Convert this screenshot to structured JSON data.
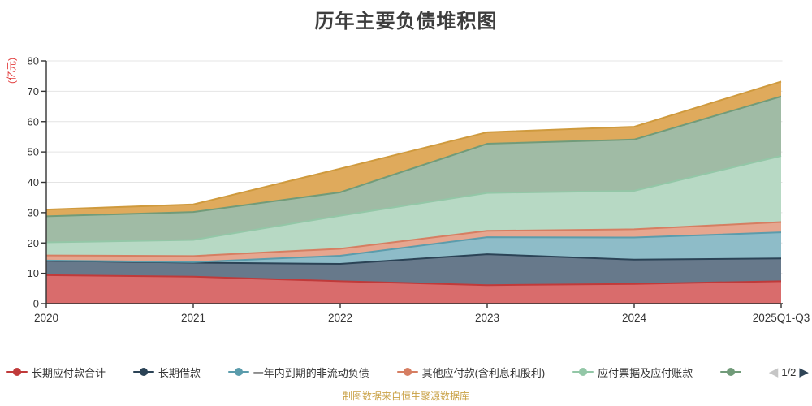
{
  "title": "历年主要负债堆积图",
  "footer": "制图数据来自恒生聚源数据库",
  "legend": {
    "items": [
      {
        "label": "长期应付款合计",
        "color": "#c03a3a"
      },
      {
        "label": "长期借款",
        "color": "#2b4356"
      },
      {
        "label": "一年内到期的非流动负债",
        "color": "#5b9cac"
      },
      {
        "label": "其他应付款(含利息和股利)",
        "color": "#d67e62"
      },
      {
        "label": "应付票据及应付账款",
        "color": "#93c7a7"
      },
      {
        "label": "",
        "color": "#719b79"
      }
    ],
    "pagination": {
      "current": "1/2",
      "prev_icon": "◀",
      "next_icon": "▶",
      "prev_enabled": false,
      "next_enabled": true
    }
  },
  "chart_data": {
    "type": "area",
    "stacked": true,
    "title": "历年主要负债堆积图",
    "xlabel": "",
    "ylabel": "(亿元)",
    "ylim": [
      0,
      80
    ],
    "y_ticks": [
      0,
      10,
      20,
      30,
      40,
      50,
      60,
      70,
      80
    ],
    "grid": true,
    "legend_position": "bottom",
    "categories": [
      "2020",
      "2021",
      "2022",
      "2023",
      "2024",
      "2025Q1-Q3"
    ],
    "series": [
      {
        "name": "长期应付款合计",
        "line_color": "#c03a3a",
        "area_color": "#d96c6c",
        "values": [
          9.4,
          8.9,
          7.4,
          6.1,
          6.5,
          7.4
        ]
      },
      {
        "name": "长期借款",
        "line_color": "#2b4356",
        "area_color": "#67798b",
        "values": [
          4.7,
          4.6,
          5.7,
          10.2,
          8.0,
          7.5
        ]
      },
      {
        "name": "一年内到期的非流动负债",
        "line_color": "#5b9cac",
        "area_color": "#8ebcc8",
        "values": [
          0.1,
          0.2,
          2.7,
          5.6,
          7.3,
          8.6
        ]
      },
      {
        "name": "其他应付款(含利息和股利)",
        "line_color": "#d67e62",
        "area_color": "#e6a68f",
        "values": [
          1.7,
          2.0,
          2.3,
          2.1,
          2.7,
          3.4
        ]
      },
      {
        "name": "应付票据及应付账款",
        "line_color": "#93c7a7",
        "area_color": "#b7d9c4",
        "values": [
          4.3,
          5.3,
          10.9,
          12.5,
          12.7,
          21.8
        ]
      },
      {
        "name": "",
        "line_color": "#719b79",
        "area_color": "#a0bba5",
        "values": [
          8.6,
          9.2,
          7.7,
          16.2,
          16.9,
          19.6
        ]
      },
      {
        "name": "",
        "line_color": "#cf9a3d",
        "area_color": "#dfaa5c",
        "values": [
          2.2,
          2.5,
          7.8,
          3.8,
          4.2,
          4.9
        ]
      }
    ],
    "colors": {
      "axis": "#333333",
      "grid_line": "#e4e4e4",
      "tick_label": "#333333",
      "y_name": "#e23c3c"
    }
  }
}
